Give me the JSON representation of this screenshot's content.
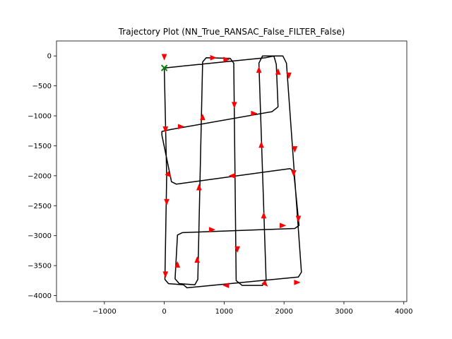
{
  "chart_data": {
    "type": "line",
    "title": "Trajectory Plot (NN_True_RANSAC_False_FILTER_False)",
    "xlabel": "",
    "ylabel": "",
    "xlim": [
      -1800,
      4050
    ],
    "ylim": [
      -4100,
      250
    ],
    "xticks": [
      -1000,
      0,
      1000,
      2000,
      3000,
      4000
    ],
    "yticks": [
      0,
      -500,
      -1000,
      -1500,
      -2000,
      -2500,
      -3000,
      -3500,
      -4000
    ],
    "xtick_labels": [
      "−1000",
      "0",
      "1000",
      "2000",
      "3000",
      "4000"
    ],
    "ytick_labels": [
      "0",
      "−500",
      "−1000",
      "−1500",
      "−2000",
      "−2500",
      "−3000",
      "−3500",
      "−4000"
    ],
    "grid": false,
    "line_color": "#000000",
    "arrow_color": "#ff0000",
    "start_marker_color": "#008000",
    "path": [
      [
        0,
        -200
      ],
      [
        1690,
        -30
      ],
      [
        1830,
        0
      ],
      [
        1870,
        -140
      ],
      [
        1900,
        -850
      ],
      [
        1800,
        -930
      ],
      [
        100,
        -1230
      ],
      [
        -40,
        -1260
      ],
      [
        -40,
        -1320
      ],
      [
        120,
        -2100
      ],
      [
        200,
        -2140
      ],
      [
        2100,
        -1880
      ],
      [
        2160,
        -1920
      ],
      [
        2250,
        -2830
      ],
      [
        2180,
        -2880
      ],
      [
        300,
        -2950
      ],
      [
        220,
        -2990
      ],
      [
        180,
        -3720
      ],
      [
        250,
        -3800
      ],
      [
        510,
        -3820
      ],
      [
        560,
        -3730
      ],
      [
        640,
        -100
      ],
      [
        700,
        -30
      ],
      [
        1100,
        -40
      ],
      [
        1160,
        -120
      ],
      [
        1200,
        -3750
      ],
      [
        1300,
        -3830
      ],
      [
        1640,
        -3830
      ],
      [
        1700,
        -3740
      ],
      [
        1580,
        -120
      ],
      [
        1640,
        0
      ],
      [
        1980,
        0
      ],
      [
        2040,
        -120
      ],
      [
        2290,
        -3610
      ],
      [
        2240,
        -3690
      ],
      [
        380,
        -3870
      ],
      [
        320,
        -3820
      ],
      [
        70,
        -3800
      ],
      [
        10,
        -3730
      ],
      [
        40,
        -2000
      ],
      [
        0,
        -200
      ]
    ],
    "arrows": [
      {
        "x": 0,
        "y": -20,
        "dx": 0,
        "dy": -1
      },
      {
        "x": 820,
        "y": -30,
        "dx": 1,
        "dy": 0
      },
      {
        "x": 1040,
        "y": -60,
        "dx": 1,
        "dy": 0
      },
      {
        "x": 1170,
        "y": -820,
        "dx": 0,
        "dy": -1
      },
      {
        "x": 1500,
        "y": -960,
        "dx": 1,
        "dy": 0
      },
      {
        "x": 1580,
        "y": -230,
        "dx": 0,
        "dy": 1
      },
      {
        "x": 1900,
        "y": -260,
        "dx": 0,
        "dy": 1
      },
      {
        "x": 2080,
        "y": -330,
        "dx": 0,
        "dy": -1
      },
      {
        "x": 2180,
        "y": -1560,
        "dx": 0,
        "dy": -1
      },
      {
        "x": 2160,
        "y": -1960,
        "dx": 0,
        "dy": -1
      },
      {
        "x": 2240,
        "y": -2720,
        "dx": 0,
        "dy": -1
      },
      {
        "x": 1980,
        "y": -2830,
        "dx": 1,
        "dy": 0
      },
      {
        "x": 1660,
        "y": -2660,
        "dx": 0,
        "dy": 1
      },
      {
        "x": 1620,
        "y": -1480,
        "dx": 0,
        "dy": 1
      },
      {
        "x": 1130,
        "y": -2000,
        "dx": -1,
        "dy": 0
      },
      {
        "x": 1220,
        "y": -3230,
        "dx": 0,
        "dy": -1
      },
      {
        "x": 1690,
        "y": -3810,
        "dx": 1,
        "dy": -1
      },
      {
        "x": 2220,
        "y": -3780,
        "dx": 1,
        "dy": 0
      },
      {
        "x": 1030,
        "y": -3830,
        "dx": -1,
        "dy": 0
      },
      {
        "x": 550,
        "y": -3400,
        "dx": 0,
        "dy": 1
      },
      {
        "x": 580,
        "y": -2190,
        "dx": 0,
        "dy": 1
      },
      {
        "x": 640,
        "y": -1020,
        "dx": 0,
        "dy": 1
      },
      {
        "x": 800,
        "y": -2900,
        "dx": 1,
        "dy": 0
      },
      {
        "x": 220,
        "y": -3480,
        "dx": 0,
        "dy": 1
      },
      {
        "x": 20,
        "y": -3650,
        "dx": 0,
        "dy": -1
      },
      {
        "x": 40,
        "y": -2440,
        "dx": 0,
        "dy": -1
      },
      {
        "x": 80,
        "y": -1990,
        "dx": 1,
        "dy": -1
      },
      {
        "x": 20,
        "y": -1230,
        "dx": 0,
        "dy": -1
      },
      {
        "x": 280,
        "y": -1180,
        "dx": 1,
        "dy": 0
      }
    ],
    "start_marker": {
      "x": 0,
      "y": -200
    }
  }
}
